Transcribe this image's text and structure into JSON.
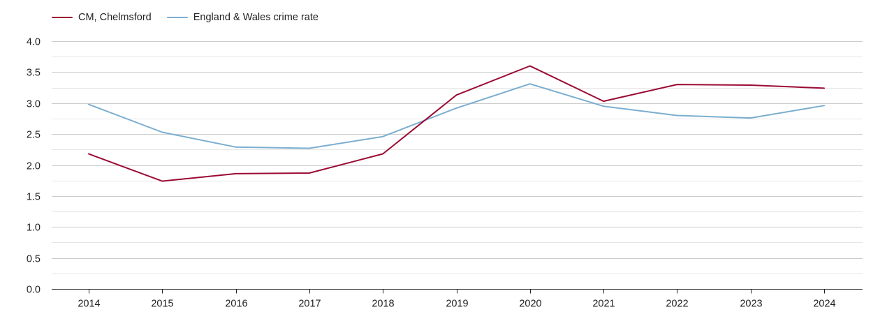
{
  "chart_data": {
    "type": "line",
    "title": "",
    "xlabel": "",
    "ylabel": "",
    "categories": [
      "2014",
      "2015",
      "2016",
      "2017",
      "2018",
      "2019",
      "2020",
      "2021",
      "2022",
      "2023",
      "2024"
    ],
    "ylim": [
      0,
      4.0
    ],
    "yticks": [
      "0.0",
      "0.5",
      "1.0",
      "1.5",
      "2.0",
      "2.5",
      "3.0",
      "3.5",
      "4.0"
    ],
    "grid": true,
    "legend_position": "top-left",
    "series": [
      {
        "name": "CM, Chelmsford",
        "color": "#9b0a33",
        "values": [
          2.18,
          1.74,
          1.86,
          1.87,
          2.18,
          3.13,
          3.6,
          3.03,
          3.3,
          3.29,
          3.24
        ]
      },
      {
        "name": "England & Wales crime rate",
        "color": "#7aaed0",
        "values": [
          2.98,
          2.53,
          2.29,
          2.27,
          2.46,
          2.92,
          3.31,
          2.95,
          2.8,
          2.76,
          2.96
        ]
      }
    ],
    "colors": {
      "grid_major": "#cccccc",
      "grid_minor": "#e6e6e6",
      "axis": "#222222"
    }
  }
}
